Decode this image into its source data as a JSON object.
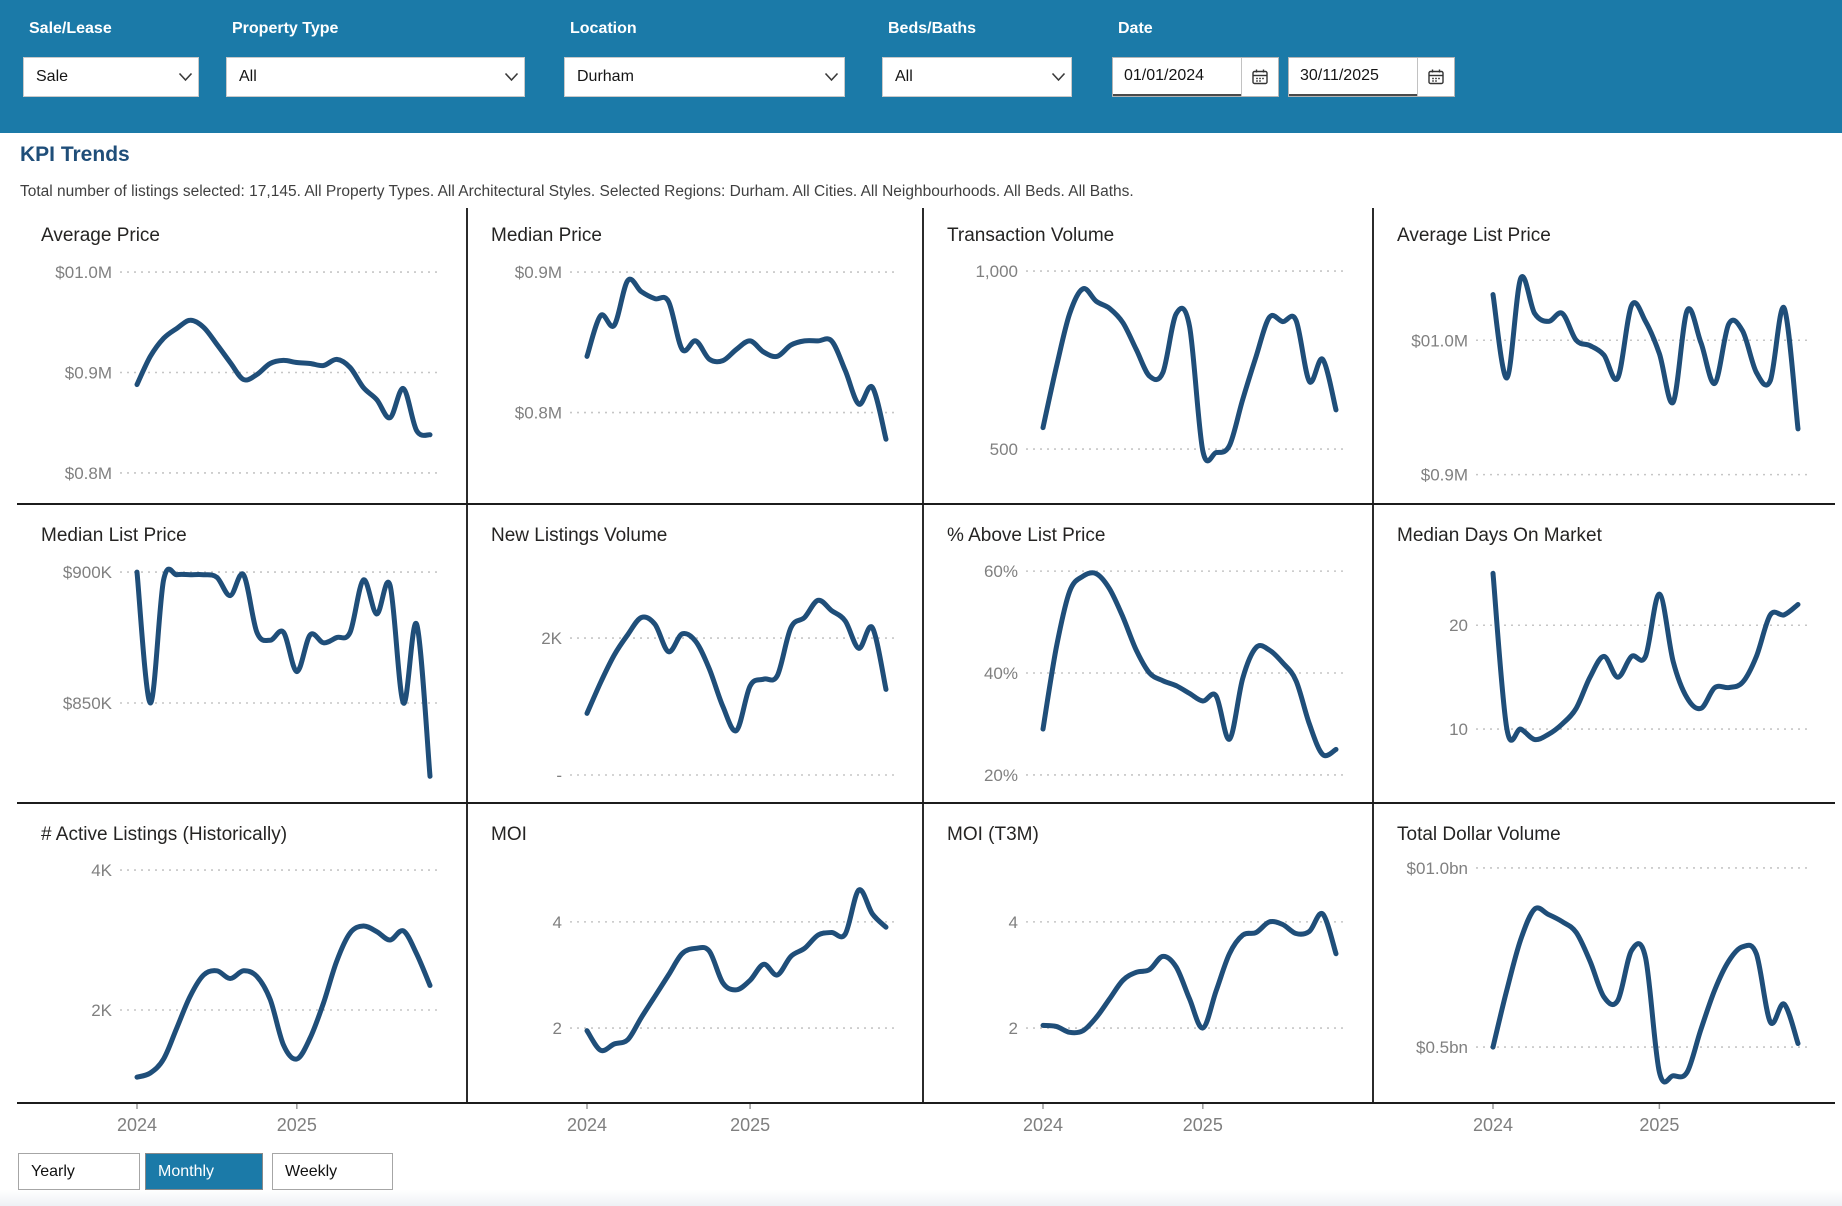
{
  "colors": {
    "accent": "#1b7aa8",
    "line": "#1f4e79"
  },
  "filters": {
    "sale_lease": {
      "label": "Sale/Lease",
      "value": "Sale"
    },
    "property_type": {
      "label": "Property Type",
      "value": "All"
    },
    "location": {
      "label": "Location",
      "value": "Durham"
    },
    "beds_baths": {
      "label": "Beds/Baths",
      "value": "All"
    },
    "date": {
      "label": "Date",
      "start": "01/01/2024",
      "end": "30/11/2025"
    }
  },
  "page": {
    "title": "KPI Trends",
    "subtitle": "Total number of listings selected: 17,145. All Property Types. All Architectural Styles. Selected Regions: Durham. All Cities. All Neighbourhoods. All Beds. All Baths."
  },
  "granularity": {
    "options": [
      "Yearly",
      "Monthly",
      "Weekly"
    ],
    "selected": "Monthly"
  },
  "chart_data": [
    {
      "id": "average-price",
      "type": "line",
      "title": "Average Price",
      "unit": "$M",
      "ticks": [
        {
          "label": "$01.0M",
          "value": 1.0
        },
        {
          "label": "$0.9M",
          "value": 0.9
        },
        {
          "label": "$0.8M",
          "value": 0.8
        }
      ],
      "ylim": [
        0.793,
        1.007
      ],
      "x_range": [
        "2024-01",
        "2025-11"
      ],
      "xticks": [
        {
          "label": "2024",
          "index": 0
        },
        {
          "label": "2025",
          "index": 12
        }
      ],
      "show_x_axis": false,
      "values": [
        0.888,
        0.916,
        0.934,
        0.944,
        0.952,
        0.945,
        0.928,
        0.91,
        0.893,
        0.898,
        0.909,
        0.912,
        0.91,
        0.909,
        0.907,
        0.913,
        0.905,
        0.885,
        0.873,
        0.855,
        0.884,
        0.842,
        0.838
      ]
    },
    {
      "id": "median-price",
      "type": "line",
      "title": "Median Price",
      "unit": "$M",
      "ticks": [
        {
          "label": "$0.9M",
          "value": 0.9
        },
        {
          "label": "$0.8M",
          "value": 0.8
        }
      ],
      "ylim": [
        0.752,
        0.905
      ],
      "x_range": [
        "2024-01",
        "2025-11"
      ],
      "xticks": [
        {
          "label": "2024",
          "index": 0
        },
        {
          "label": "2025",
          "index": 12
        }
      ],
      "show_x_axis": false,
      "values": [
        0.84,
        0.869,
        0.862,
        0.894,
        0.886,
        0.881,
        0.879,
        0.845,
        0.851,
        0.838,
        0.837,
        0.845,
        0.851,
        0.843,
        0.84,
        0.848,
        0.851,
        0.851,
        0.851,
        0.83,
        0.806,
        0.818,
        0.781
      ]
    },
    {
      "id": "transaction-volume",
      "type": "line",
      "title": "Transaction Volume",
      "unit": "sales",
      "ticks": [
        {
          "label": "1,000",
          "value": 1000
        },
        {
          "label": "500",
          "value": 500
        }
      ],
      "ylim": [
        413,
        1017
      ],
      "x_range": [
        "2024-01",
        "2025-11"
      ],
      "xticks": [
        {
          "label": "2024",
          "index": 0
        },
        {
          "label": "2025",
          "index": 12
        }
      ],
      "show_x_axis": false,
      "values": [
        560,
        730,
        880,
        950,
        915,
        895,
        855,
        780,
        705,
        715,
        880,
        845,
        495,
        490,
        510,
        640,
        760,
        870,
        858,
        862,
        690,
        752,
        610
      ]
    },
    {
      "id": "average-list-price",
      "type": "line",
      "title": "Average List Price",
      "unit": "$M",
      "ticks": [
        {
          "label": "$01.0M",
          "value": 1.0
        },
        {
          "label": "$0.9M",
          "value": 0.9
        }
      ],
      "ylim": [
        0.896,
        1.056
      ],
      "x_range": [
        "2024-01",
        "2025-11"
      ],
      "xticks": [
        {
          "label": "2024",
          "index": 0
        },
        {
          "label": "2025",
          "index": 12
        }
      ],
      "show_x_axis": false,
      "values": [
        1.034,
        0.972,
        1.046,
        1.02,
        1.014,
        1.02,
        1.0,
        0.996,
        0.989,
        0.972,
        1.026,
        1.014,
        0.99,
        0.954,
        1.022,
        0.998,
        0.968,
        1.012,
        1.007,
        0.976,
        0.97,
        1.024,
        0.934
      ]
    },
    {
      "id": "median-list-price",
      "type": "line",
      "title": "Median List Price",
      "unit": "$K",
      "ticks": [
        {
          "label": "$900K",
          "value": 900
        },
        {
          "label": "$850K",
          "value": 850
        }
      ],
      "ylim": [
        820.6,
        902.7
      ],
      "x_range": [
        "2024-01",
        "2025-11"
      ],
      "xticks": [
        {
          "label": "2024",
          "index": 0
        },
        {
          "label": "2025",
          "index": 12
        }
      ],
      "show_x_axis": false,
      "values": [
        900,
        850,
        897,
        899,
        899,
        899,
        898,
        891,
        899,
        877,
        874,
        877,
        862,
        876,
        873,
        875,
        877,
        897,
        884,
        895,
        850,
        880,
        822
      ]
    },
    {
      "id": "new-listings-volume",
      "type": "line",
      "title": "New Listings Volume",
      "unit": "listings",
      "ticks": [
        {
          "label": "2K",
          "value": 2000
        },
        {
          "label": "-",
          "value": 0
        }
      ],
      "ylim": [
        -73,
        3066
      ],
      "x_range": [
        "2024-01",
        "2025-11"
      ],
      "xticks": [
        {
          "label": "2024",
          "index": 0
        },
        {
          "label": "2025",
          "index": 12
        }
      ],
      "show_x_axis": false,
      "values": [
        900,
        1350,
        1750,
        2050,
        2300,
        2200,
        1800,
        2060,
        1950,
        1550,
        1000,
        650,
        1300,
        1400,
        1450,
        2150,
        2300,
        2550,
        2400,
        2250,
        1850,
        2150,
        1250
      ]
    },
    {
      "id": "pct-above-list-price",
      "type": "line",
      "title": "% Above List Price",
      "unit": "%",
      "ticks": [
        {
          "label": "60%",
          "value": 60
        },
        {
          "label": "40%",
          "value": 40
        },
        {
          "label": "20%",
          "value": 20
        }
      ],
      "ylim": [
        19.0,
        61.2
      ],
      "x_range": [
        "2024-01",
        "2025-11"
      ],
      "xticks": [
        {
          "label": "2024",
          "index": 0
        },
        {
          "label": "2025",
          "index": 12
        }
      ],
      "show_x_axis": false,
      "values": [
        29,
        45,
        56,
        59,
        59.5,
        56.5,
        51,
        44.5,
        40,
        38.5,
        37.5,
        36,
        34.5,
        35.5,
        27,
        39,
        45,
        44.5,
        42,
        38.5,
        30,
        24,
        25
      ]
    },
    {
      "id": "median-days-on-market",
      "type": "line",
      "title": "Median Days On Market",
      "unit": "days",
      "ticks": [
        {
          "label": "20",
          "value": 20
        },
        {
          "label": "10",
          "value": 10
        }
      ],
      "ylim": [
        5.1,
        25.8
      ],
      "x_range": [
        "2024-01",
        "2025-11"
      ],
      "xticks": [
        {
          "label": "2024",
          "index": 0
        },
        {
          "label": "2025",
          "index": 12
        }
      ],
      "show_x_axis": false,
      "values": [
        25,
        10,
        10,
        9,
        9.5,
        10.5,
        12,
        15,
        17,
        15,
        17,
        17,
        23,
        16.5,
        13,
        12,
        14,
        14,
        14.5,
        17,
        21,
        21,
        22
      ]
    },
    {
      "id": "active-listings-historically",
      "type": "line",
      "title": "# Active Listings (Historically)",
      "unit": "listings",
      "ticks": [
        {
          "label": "4K",
          "value": 4000
        },
        {
          "label": "2K",
          "value": 2000
        }
      ],
      "ylim": [
        1014,
        4086
      ],
      "x_range": [
        "2024-01",
        "2025-11"
      ],
      "xticks": [
        {
          "label": "2024",
          "index": 0
        },
        {
          "label": "2025",
          "index": 12
        }
      ],
      "show_x_axis": true,
      "values": [
        1040,
        1100,
        1300,
        1750,
        2200,
        2500,
        2560,
        2450,
        2560,
        2480,
        2150,
        1500,
        1300,
        1600,
        2100,
        2700,
        3100,
        3200,
        3120,
        3000,
        3130,
        2800,
        2350
      ]
    },
    {
      "id": "moi",
      "type": "line",
      "title": "MOI",
      "unit": "months",
      "ticks": [
        {
          "label": "4",
          "value": 4
        },
        {
          "label": "2",
          "value": 2
        }
      ],
      "ylim": [
        1.04,
        5.09
      ],
      "x_range": [
        "2024-01",
        "2025-11"
      ],
      "xticks": [
        {
          "label": "2024",
          "index": 0
        },
        {
          "label": "2025",
          "index": 12
        }
      ],
      "show_x_axis": true,
      "values": [
        1.95,
        1.58,
        1.7,
        1.78,
        2.2,
        2.6,
        3.0,
        3.4,
        3.5,
        3.45,
        2.85,
        2.72,
        2.9,
        3.2,
        3.0,
        3.35,
        3.5,
        3.75,
        3.8,
        3.77,
        4.6,
        4.15,
        3.9
      ]
    },
    {
      "id": "moi-t3m",
      "type": "line",
      "title": "MOI (T3M)",
      "unit": "months",
      "ticks": [
        {
          "label": "4",
          "value": 4
        },
        {
          "label": "2",
          "value": 2
        }
      ],
      "ylim": [
        1.04,
        5.09
      ],
      "x_range": [
        "2024-01",
        "2025-11"
      ],
      "xticks": [
        {
          "label": "2024",
          "index": 0
        },
        {
          "label": "2025",
          "index": 12
        }
      ],
      "show_x_axis": true,
      "values": [
        2.05,
        2.03,
        1.92,
        1.95,
        2.2,
        2.55,
        2.9,
        3.05,
        3.1,
        3.35,
        3.15,
        2.55,
        2.0,
        2.7,
        3.4,
        3.75,
        3.8,
        4.0,
        3.95,
        3.78,
        3.82,
        4.15,
        3.4
      ]
    },
    {
      "id": "total-dollar-volume",
      "type": "line",
      "title": "Total Dollar Volume",
      "unit": "$bn",
      "ticks": [
        {
          "label": "$01.0bn",
          "value": 1.0
        },
        {
          "label": "$0.5bn",
          "value": 0.5
        }
      ],
      "ylim": [
        0.411,
        1.011
      ],
      "x_range": [
        "2024-01",
        "2025-11"
      ],
      "xticks": [
        {
          "label": "2024",
          "index": 0
        },
        {
          "label": "2025",
          "index": 12
        }
      ],
      "show_x_axis": true,
      "values": [
        0.5,
        0.66,
        0.8,
        0.885,
        0.87,
        0.85,
        0.82,
        0.74,
        0.64,
        0.63,
        0.77,
        0.75,
        0.43,
        0.42,
        0.43,
        0.55,
        0.66,
        0.74,
        0.78,
        0.76,
        0.57,
        0.62,
        0.51
      ]
    }
  ]
}
